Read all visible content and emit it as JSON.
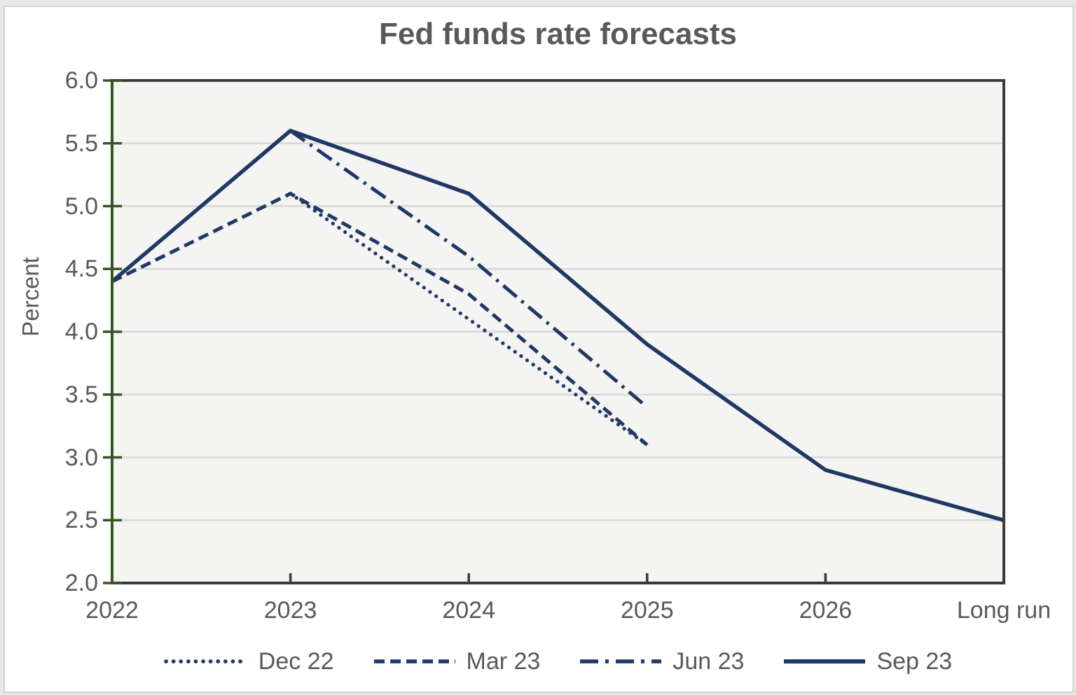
{
  "chart_data": {
    "type": "line",
    "title": "Fed funds rate forecasts",
    "ylabel": "Percent",
    "xlabel": "",
    "categories": [
      "2022",
      "2023",
      "2024",
      "2025",
      "2026",
      "Long run"
    ],
    "ylim": [
      2.0,
      6.0
    ],
    "ytick_interval": 0.5,
    "ytick_labels": [
      "6.0",
      "5.5",
      "5.0",
      "4.5",
      "4.0",
      "3.5",
      "3.0",
      "2.5",
      "2.0"
    ],
    "grid": "horizontal-only",
    "legend_position": "bottom",
    "series": [
      {
        "name": "Dec 22",
        "line_style": "dotted",
        "values": [
          null,
          5.1,
          4.1,
          3.1,
          null,
          null
        ]
      },
      {
        "name": "Mar 23",
        "line_style": "dashed",
        "values": [
          4.4,
          5.1,
          4.3,
          3.1,
          null,
          null
        ]
      },
      {
        "name": "Jun 23",
        "line_style": "dashdot",
        "values": [
          null,
          5.6,
          4.6,
          3.4,
          null,
          null
        ]
      },
      {
        "name": "Sep 23",
        "line_style": "solid",
        "values": [
          4.4,
          5.6,
          5.1,
          3.9,
          2.9,
          2.5
        ]
      }
    ],
    "colors": {
      "series_line": "#1f3864",
      "title_text": "#595959",
      "axis_text": "#595959",
      "value_axis_line": "#375623",
      "frame_line": "#3a3a3a",
      "gridline": "#d8d8d8",
      "plot_fill": "#f4f4f2"
    }
  }
}
